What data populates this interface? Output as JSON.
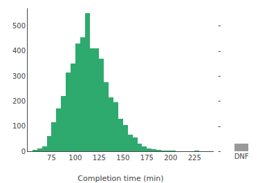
{
  "chart_data": [
    {
      "type": "bar",
      "x": [
        55,
        60,
        65,
        70,
        75,
        80,
        85,
        90,
        95,
        100,
        105,
        110,
        115,
        120,
        125,
        130,
        135,
        140,
        145,
        150,
        155,
        160,
        165,
        170,
        175,
        180,
        185,
        190,
        195,
        200,
        225,
        230
      ],
      "values": [
        5,
        10,
        20,
        60,
        115,
        170,
        220,
        315,
        350,
        430,
        455,
        550,
        410,
        410,
        370,
        275,
        215,
        195,
        130,
        105,
        65,
        55,
        30,
        20,
        10,
        8,
        5,
        3,
        2,
        2,
        2,
        1
      ],
      "bin_width": 5,
      "color": "#2eaa6e",
      "xlabel": "Completion time (min)",
      "xlim": [
        50,
        245
      ],
      "xticks": [
        75,
        100,
        125,
        150,
        175,
        200,
        225
      ],
      "ylim": [
        0,
        570
      ],
      "yticks": [
        0,
        100,
        200,
        300,
        400,
        500
      ],
      "grid": false,
      "annotations": [
        {
          "text": "-",
          "y": 0
        },
        {
          "text": "-",
          "y": 100
        },
        {
          "text": "-",
          "y": 200
        },
        {
          "text": "-",
          "y": 300
        },
        {
          "text": "-",
          "y": 400
        },
        {
          "text": "-",
          "y": 500
        }
      ]
    },
    {
      "type": "bar",
      "categories": [
        "DNF"
      ],
      "values": [
        30
      ],
      "color": "#999999",
      "ylim": [
        0,
        570
      ],
      "grid": false,
      "tick_labels": "x"
    }
  ]
}
